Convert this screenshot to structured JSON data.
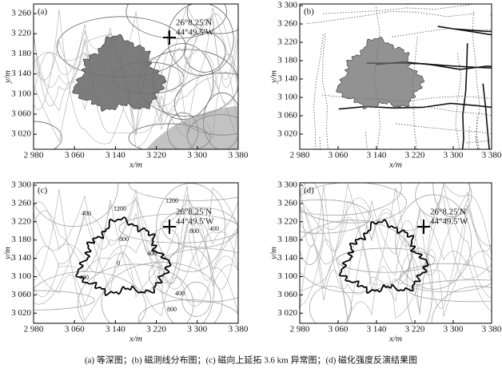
{
  "panels": [
    {
      "label": "(a)",
      "xlabel": "x/m",
      "ylabel": "y/m",
      "xticks": [
        "2 980",
        "3 060",
        "3 140",
        "3 220",
        "3 300",
        "3 380"
      ],
      "yticks": [
        "3 260",
        "3 220",
        "3 180",
        "3 140",
        "3 100",
        "3 060",
        "3 020"
      ],
      "annotation": [
        "26°8.25′N",
        "44°49.5′W"
      ]
    },
    {
      "label": "(b)",
      "xlabel": "x/m",
      "ylabel": "y/m",
      "xticks": [
        "2 980",
        "3 060",
        "3 140",
        "3 220",
        "3 300",
        "3 380"
      ],
      "yticks": [
        "3 300",
        "3 260",
        "3 220",
        "3 180",
        "3 140",
        "3 100",
        "3 060",
        "3 020"
      ]
    },
    {
      "label": "(c)",
      "xlabel": "x/m",
      "ylabel": "y/m",
      "xticks": [
        "2 980",
        "3 060",
        "3 140",
        "3 220",
        "3 300",
        "3 380"
      ],
      "yticks": [
        "3 300",
        "3 260",
        "3 220",
        "3 180",
        "3 140",
        "3 100",
        "3 060",
        "3 020"
      ],
      "annotation": [
        "26°8.25′N",
        "44°49.5′W"
      ],
      "contour_labels": [
        "400",
        "1200",
        "1200",
        "800",
        "800",
        "400",
        "400",
        "0",
        "400",
        "400",
        "800"
      ]
    },
    {
      "label": "(d)",
      "xlabel": "x/m",
      "ylabel": "y/m",
      "xticks": [
        "2 980",
        "3 060",
        "3 140",
        "3 220",
        "3 300",
        "3 380"
      ],
      "yticks": [
        "3 300",
        "3 260",
        "3 220",
        "3 180",
        "3 140",
        "3 100",
        "3 060",
        "3 020"
      ],
      "annotation": [
        "26°8.25′N",
        "44°49.5′W"
      ]
    }
  ],
  "caption": "(a) 等深图；(b) 磁测线分布图；(c) 磁向上延拓 3.6 km 异常图；(d) 磁化强度反演结果图"
}
